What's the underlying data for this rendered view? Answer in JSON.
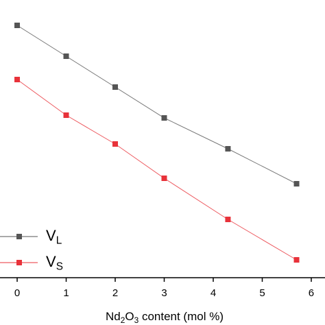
{
  "chart_data": {
    "type": "line",
    "x_label": "Nd2O3 content (mol %)",
    "x": [
      0,
      1,
      2,
      3,
      4.3,
      5.7
    ],
    "series": [
      {
        "name": "VL",
        "color": "#555555",
        "values": [
          368,
          323,
          278,
          233,
          188,
          137
        ]
      },
      {
        "name": "VS",
        "color": "#e8323a",
        "values": [
          289,
          237,
          195,
          145,
          85,
          26
        ]
      }
    ],
    "xlim": [
      -0.35,
      6.28
    ],
    "xticks": [
      0,
      1,
      2,
      3,
      4,
      5,
      6
    ],
    "ylim": [
      0,
      405
    ],
    "legend": "lower left",
    "grid": false
  }
}
